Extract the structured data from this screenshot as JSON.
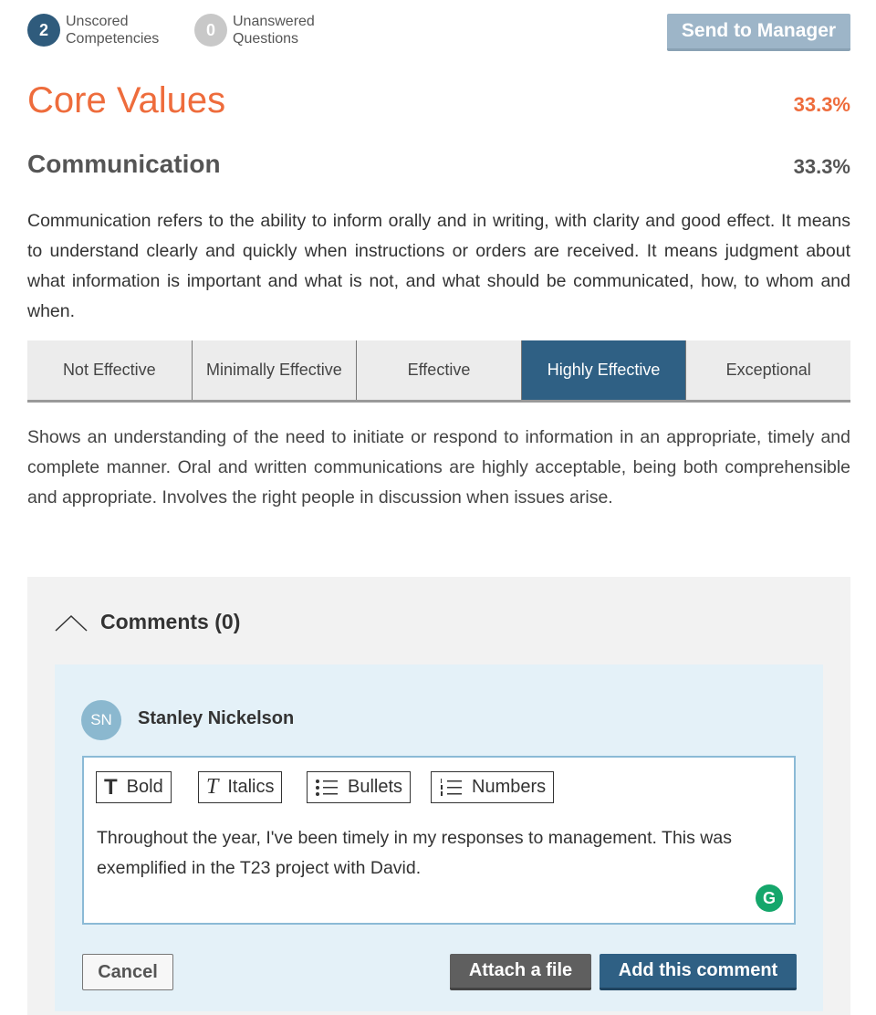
{
  "header": {
    "unscored": {
      "count": "2",
      "line1": "Unscored",
      "line2": "Competencies",
      "color": "#2f5b7c"
    },
    "unanswered": {
      "count": "0",
      "line1": "Unanswered",
      "line2": "Questions",
      "color": "#c8c8c8"
    },
    "send_label": "Send to Manager"
  },
  "section": {
    "title": "Core Values",
    "percent": "33.3%",
    "accent": "#ee6c3c"
  },
  "competency": {
    "title": "Communication",
    "percent": "33.3%",
    "description": "Communication refers to the ability to inform orally and in writing, with clarity and good effect. It means to understand clearly and quickly when instructions or orders are received. It means judgment about what information is important and what is not, and what should be communicated, how, to whom and when."
  },
  "rating": {
    "options": [
      "Not Effective",
      "Minimally Effective",
      "Effective",
      "Highly Effective",
      "Exceptional"
    ],
    "selected": "Highly Effective",
    "selected_description": "Shows an understanding of the need to initiate or respond to information in an appropriate, timely and complete manner. Oral and written communications are highly acceptable, being both comprehensible and appropriate. Involves the right people in discussion when issues arise."
  },
  "comments": {
    "title": "Comments (0)",
    "user": {
      "initials": "SN",
      "name": "Stanley Nickelson"
    },
    "toolbar": {
      "bold": "Bold",
      "italics": "Italics",
      "bullets": "Bullets",
      "numbers": "Numbers"
    },
    "text": "Throughout the year, I've been timely in my responses to management. This was exemplified in the T23 project with David.",
    "cancel": "Cancel",
    "attach": "Attach a file",
    "add": "Add this comment"
  }
}
